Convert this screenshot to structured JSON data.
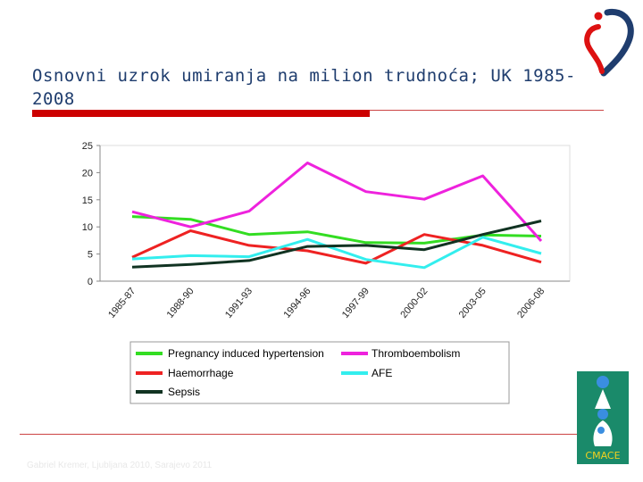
{
  "slide": {
    "title": "Osnovni uzrok umiranja na milion trudnoća; UK 1985-2008",
    "footer": "Gabriel Kremer, Ljubljana 2010, Sarajevo 2011",
    "logo_text": "CMACE"
  },
  "chart_data": {
    "type": "line",
    "categories": [
      "1985-87",
      "1988-90",
      "1991-93",
      "1994-96",
      "1997-99",
      "2000-02",
      "2003-05",
      "2006-08"
    ],
    "ylim": [
      0,
      25
    ],
    "yticks": [
      0,
      5,
      10,
      15,
      20,
      25
    ],
    "grid": false,
    "legend_position": "bottom",
    "series": [
      {
        "name": "Pregnancy induced hypertension",
        "color": "#33dd22",
        "values": [
          11.9,
          11.4,
          8.6,
          9.1,
          7.1,
          7.0,
          8.5,
          8.3
        ]
      },
      {
        "name": "Thromboembolism",
        "color": "#ee22dd",
        "values": [
          12.8,
          10.0,
          12.9,
          21.8,
          16.5,
          15.1,
          19.4,
          7.4
        ]
      },
      {
        "name": "Haemorrhage",
        "color": "#ee2222",
        "values": [
          4.4,
          9.3,
          6.6,
          5.6,
          3.3,
          8.6,
          6.6,
          3.5
        ]
      },
      {
        "name": "AFE",
        "color": "#33eeee",
        "values": [
          4.1,
          4.7,
          4.5,
          7.7,
          4.0,
          2.5,
          8.1,
          5.1
        ]
      },
      {
        "name": "Sepsis",
        "color": "#113322",
        "values": [
          2.6,
          3.1,
          3.8,
          6.4,
          6.6,
          5.8,
          8.6,
          11.1
        ]
      }
    ]
  }
}
